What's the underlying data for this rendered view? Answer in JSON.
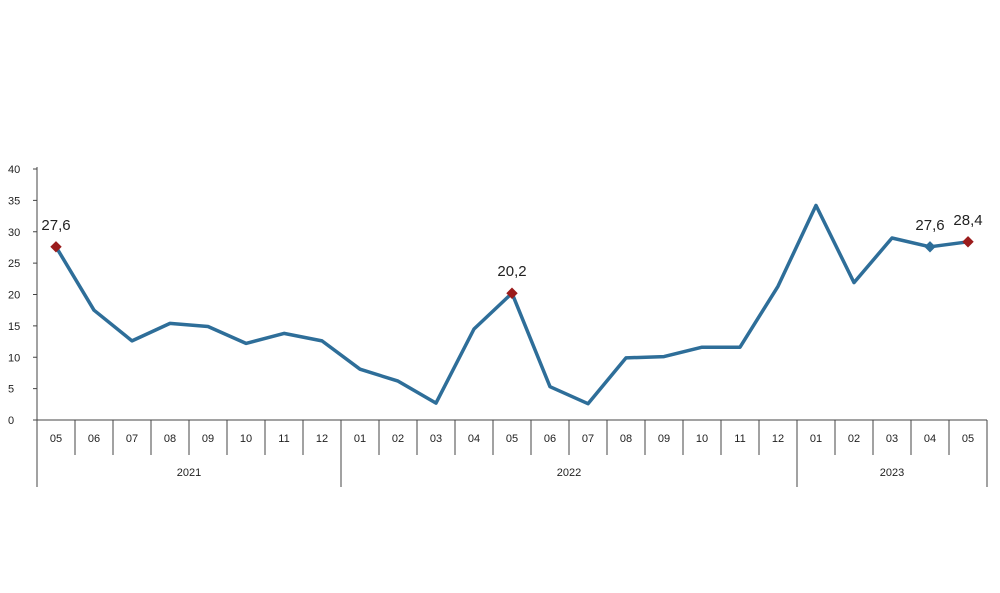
{
  "chart_data": {
    "type": "line",
    "title": "",
    "xlabel": "",
    "ylabel": "",
    "ylim": [
      0,
      40
    ],
    "yticks": [
      "0",
      "5",
      "10",
      "15",
      "20",
      "25",
      "30",
      "35",
      "40"
    ],
    "grid": false,
    "categories": [
      "05",
      "06",
      "07",
      "08",
      "09",
      "10",
      "11",
      "12",
      "01",
      "02",
      "03",
      "04",
      "05",
      "06",
      "07",
      "08",
      "09",
      "10",
      "11",
      "12",
      "01",
      "02",
      "03",
      "04",
      "05"
    ],
    "years": [
      {
        "label": "2021",
        "start": 0,
        "end": 7
      },
      {
        "label": "2022",
        "start": 8,
        "end": 19
      },
      {
        "label": "2023",
        "start": 20,
        "end": 24
      }
    ],
    "series": [
      {
        "values": [
          27.6,
          17.5,
          12.6,
          15.4,
          14.9,
          12.2,
          13.8,
          12.6,
          8.1,
          6.2,
          2.7,
          14.5,
          20.2,
          5.3,
          2.6,
          9.9,
          10.1,
          11.6,
          11.6,
          21.3,
          34.2,
          21.9,
          29.0,
          27.6,
          28.4
        ],
        "color": "#2e6e99"
      }
    ],
    "highlighted": [
      {
        "index": 0,
        "label": "27,6",
        "color": "#9b1c1c",
        "label_pos": "above"
      },
      {
        "index": 12,
        "label": "20,2",
        "color": "#9b1c1c",
        "label_pos": "above"
      },
      {
        "index": 23,
        "label": "27,6",
        "color": "#2e6e99",
        "label_pos": "above"
      },
      {
        "index": 24,
        "label": "28,4",
        "color": "#9b1c1c",
        "label_pos": "above"
      }
    ]
  }
}
